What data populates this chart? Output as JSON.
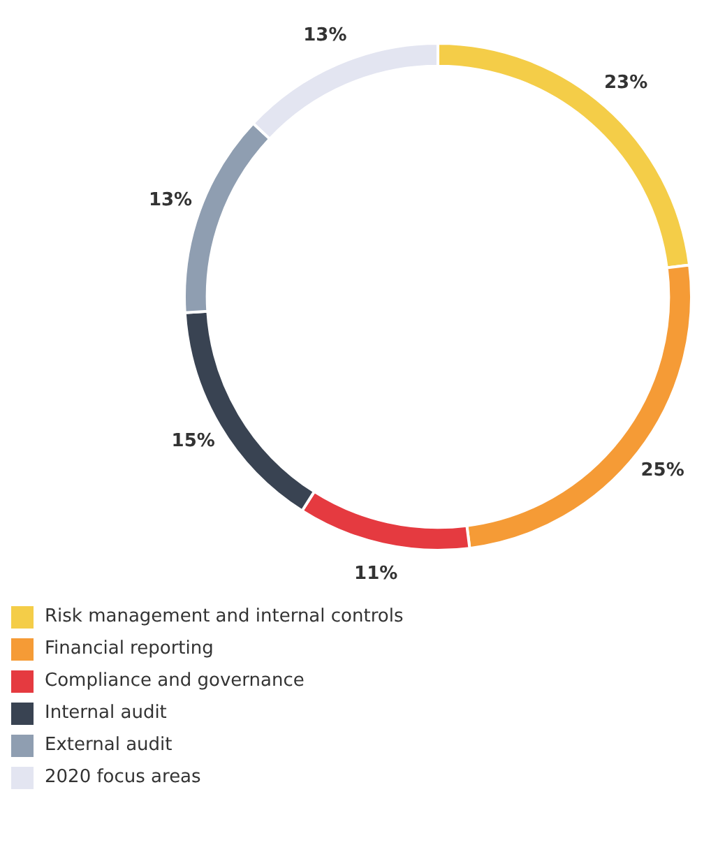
{
  "chart_data": {
    "type": "donut",
    "categories": [
      "Risk management and internal controls",
      "Financial reporting",
      "Compliance and governance",
      "Internal audit",
      "External audit",
      "2020 focus areas"
    ],
    "values": [
      23,
      25,
      11,
      15,
      13,
      13
    ],
    "colors": [
      "#f4cd48",
      "#f59b36",
      "#e53a40",
      "#394352",
      "#8f9eb1",
      "#e3e5f1"
    ],
    "value_labels": [
      "23%",
      "25%",
      "11%",
      "15%",
      "13%",
      "13%"
    ],
    "legend": "bottom left"
  }
}
